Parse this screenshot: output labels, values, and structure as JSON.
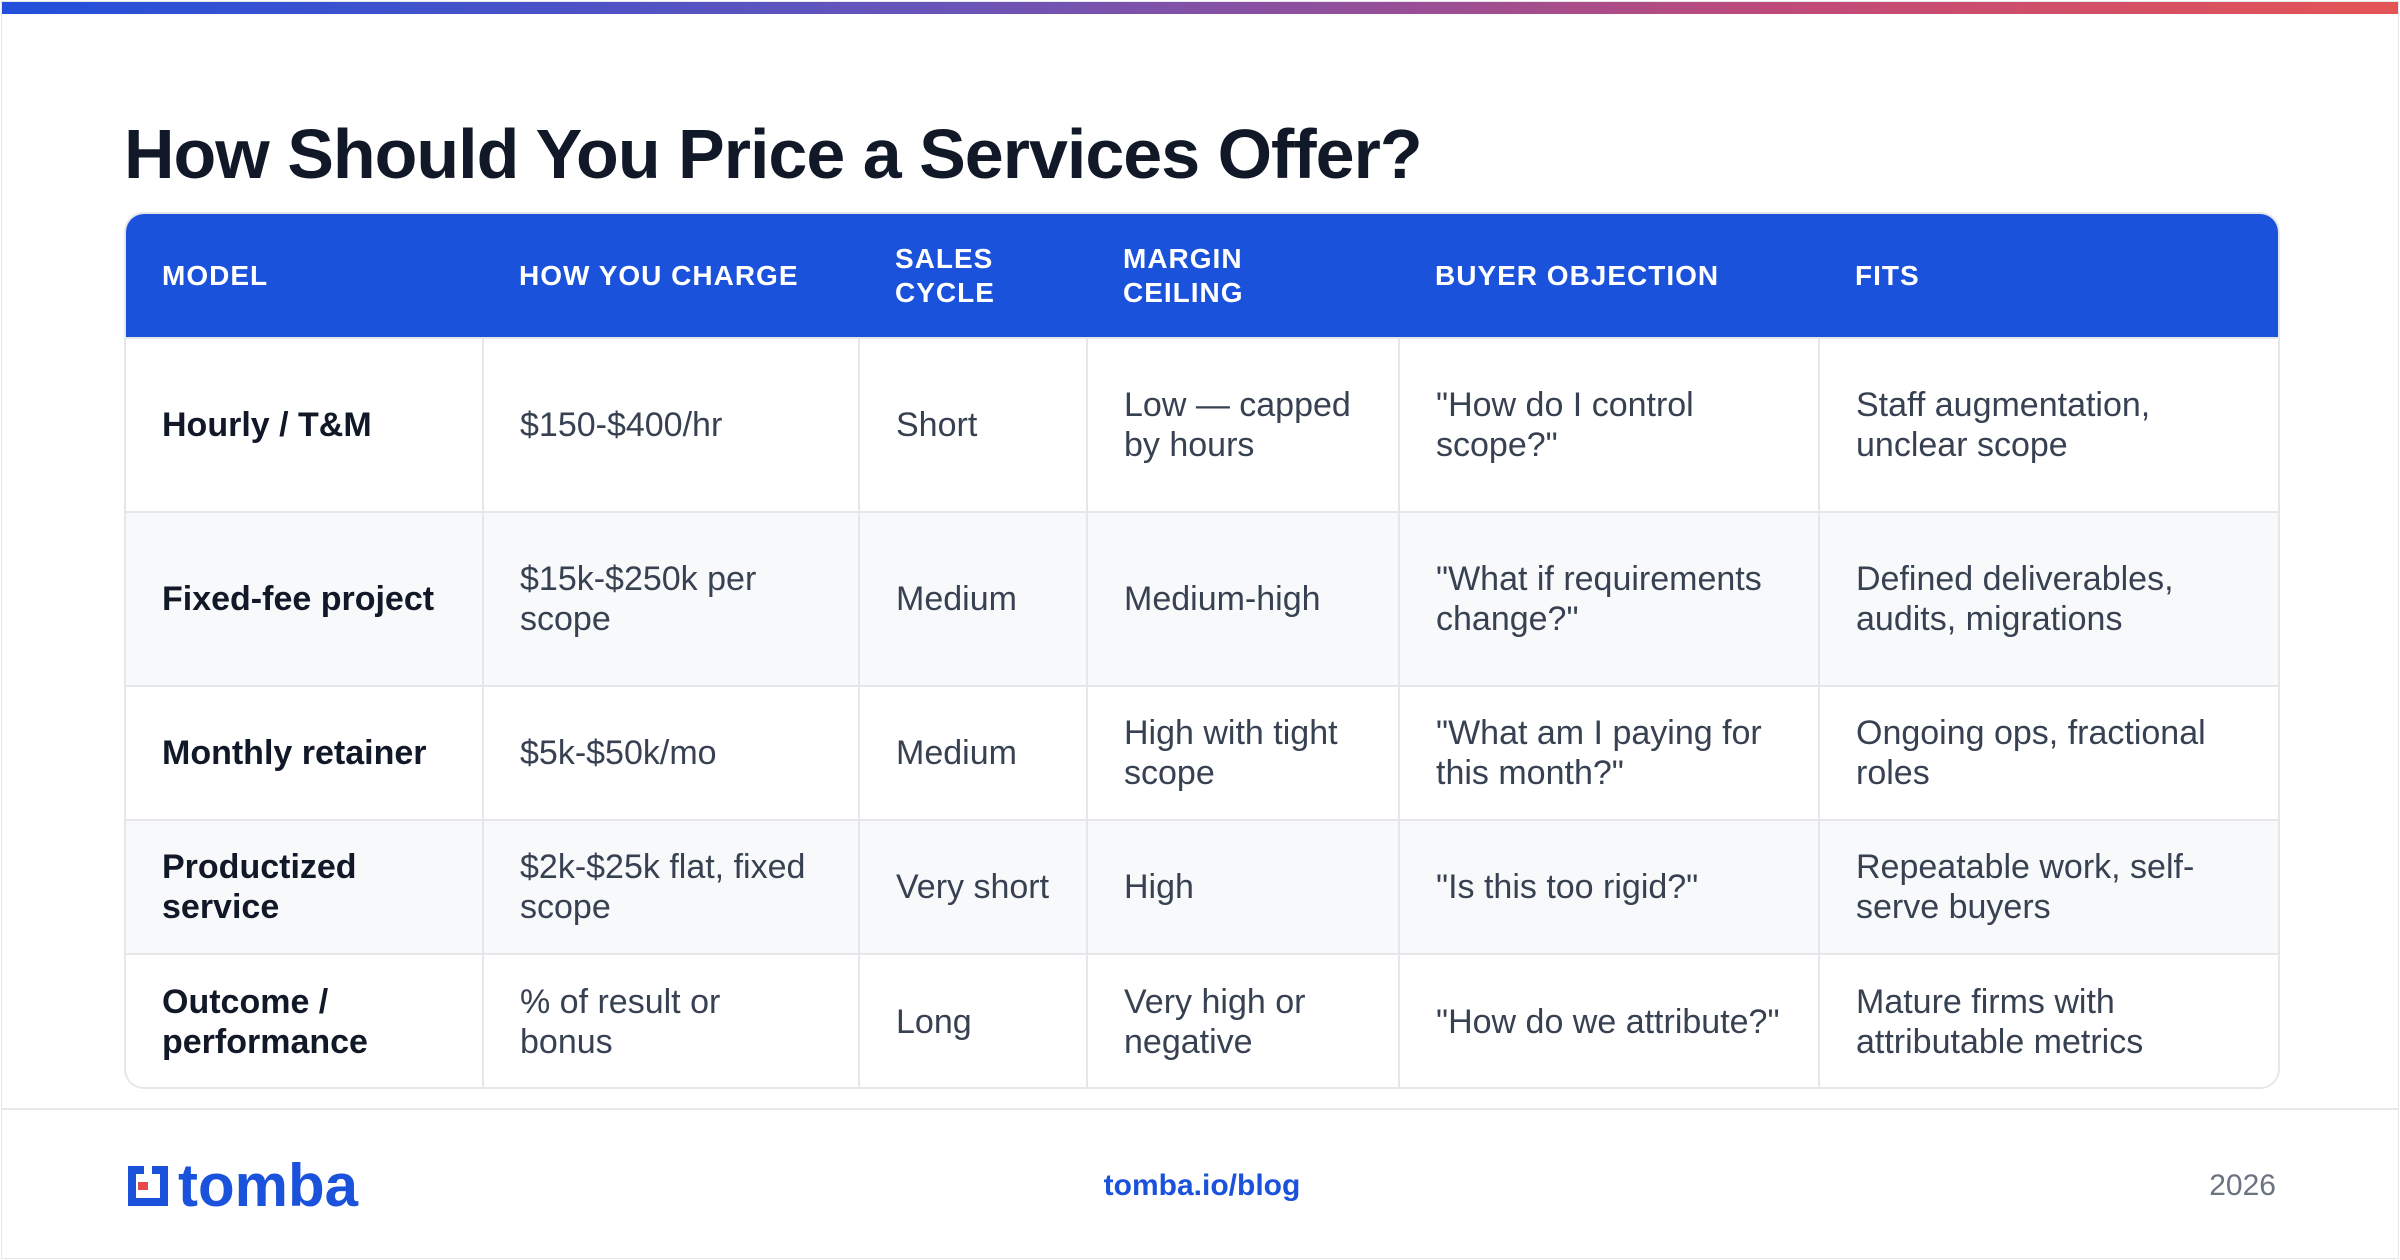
{
  "title": "How Should You Price a Services Offer?",
  "table": {
    "headers": [
      "MODEL",
      "HOW YOU CHARGE",
      "SALES CYCLE",
      "MARGIN CEILING",
      "BUYER OBJECTION",
      "FITS"
    ],
    "rows": [
      [
        "Hourly / T&M",
        "$150-$400/hr",
        "Short",
        "Low — capped by hours",
        "\"How do I control scope?\"",
        "Staff augmentation, unclear scope"
      ],
      [
        "Fixed-fee project",
        "$15k-$250k per scope",
        "Medium",
        "Medium-high",
        "\"What if requirements change?\"",
        "Defined deliverables, audits, migrations"
      ],
      [
        "Monthly retainer",
        "$5k-$50k/mo",
        "Medium",
        "High with tight scope",
        "\"What am I paying for this month?\"",
        "Ongoing ops, fractional roles"
      ],
      [
        "Productized service",
        "$2k-$25k flat, fixed scope",
        "Very short",
        "High",
        "\"Is this too rigid?\"",
        "Repeatable work, self-serve buyers"
      ],
      [
        "Outcome / performance",
        "% of result or bonus",
        "Long",
        "Very high or negative",
        "\"How do we attribute?\"",
        "Mature firms with attributable metrics"
      ]
    ]
  },
  "footer": {
    "logo_text": "tomba",
    "link": "tomba.io/blog",
    "year": "2026"
  },
  "colors": {
    "accent": "#1b52dc",
    "header_bg": "#1b52dc",
    "gradient_start": "#2150db",
    "gradient_end": "#e55455"
  },
  "icons": {
    "logo": "tomba-logo-icon"
  }
}
